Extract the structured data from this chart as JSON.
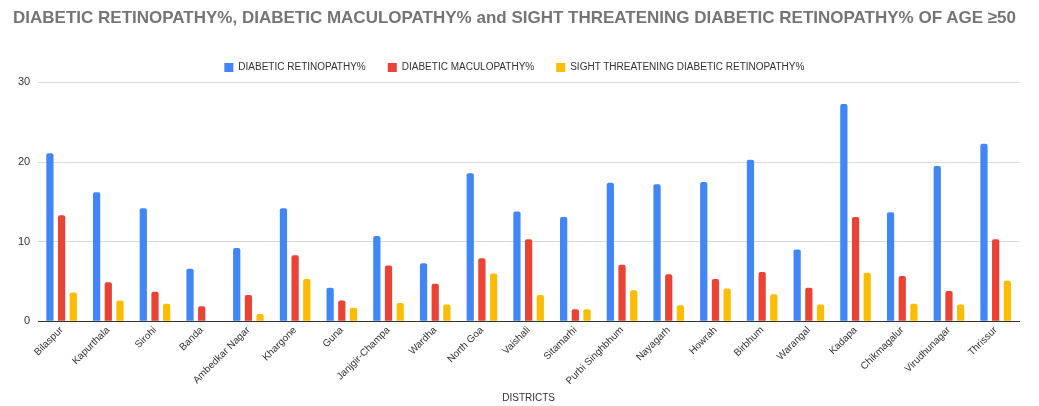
{
  "chart_data": {
    "type": "bar",
    "title": "DIABETIC RETINOPATHY%, DIABETIC MACULOPATHY% and SIGHT THREATENING DIABETIC RETINOPATHY% OF AGE ≥50",
    "xlabel": "DISTRICTS",
    "categories": [
      "Bilaspur",
      "Kapurthala",
      "Sirohi",
      "Banda",
      "Ambedkar Nagar",
      "Khargone",
      "Guna",
      "Janjgir-Champa",
      "Wardha",
      "North Goa",
      "Vaishali",
      "Sitamarhi",
      "Purbi Singhbhum",
      "Nayagarh",
      "Howrah",
      "Birbhum",
      "Warangal",
      "Kadapa",
      "Chikmagalur",
      "Virudhunagar",
      "Thrissur"
    ],
    "series": [
      {
        "name": "DIABETIC RETINOPATHY%",
        "color": "#4285f4",
        "values": [
          21.1,
          16.2,
          14.2,
          6.6,
          9.2,
          14.2,
          4.2,
          10.7,
          7.3,
          18.6,
          13.8,
          13.1,
          17.4,
          17.2,
          17.5,
          20.3,
          9.0,
          27.3,
          13.7,
          19.5,
          22.3
        ]
      },
      {
        "name": "DIABETIC MACULOPATHY%",
        "color": "#ea4335",
        "values": [
          13.3,
          4.9,
          3.7,
          1.9,
          3.3,
          8.3,
          2.6,
          7.0,
          4.7,
          7.9,
          10.3,
          1.5,
          7.1,
          5.9,
          5.3,
          6.2,
          4.2,
          13.1,
          5.7,
          3.8,
          10.3
        ]
      },
      {
        "name": "SIGHT THREATENING DIABETIC RETINOPATHY%",
        "color": "#fbbc04",
        "values": [
          3.6,
          2.6,
          2.2,
          0,
          0.9,
          5.3,
          1.7,
          2.3,
          2.1,
          6.0,
          3.3,
          1.5,
          3.9,
          2.0,
          4.1,
          3.4,
          2.1,
          6.1,
          2.2,
          2.1,
          5.1
        ]
      }
    ],
    "ylim": [
      0,
      30
    ],
    "yticks": [
      0,
      10,
      20,
      30
    ],
    "grid": "y",
    "legend": "top"
  }
}
